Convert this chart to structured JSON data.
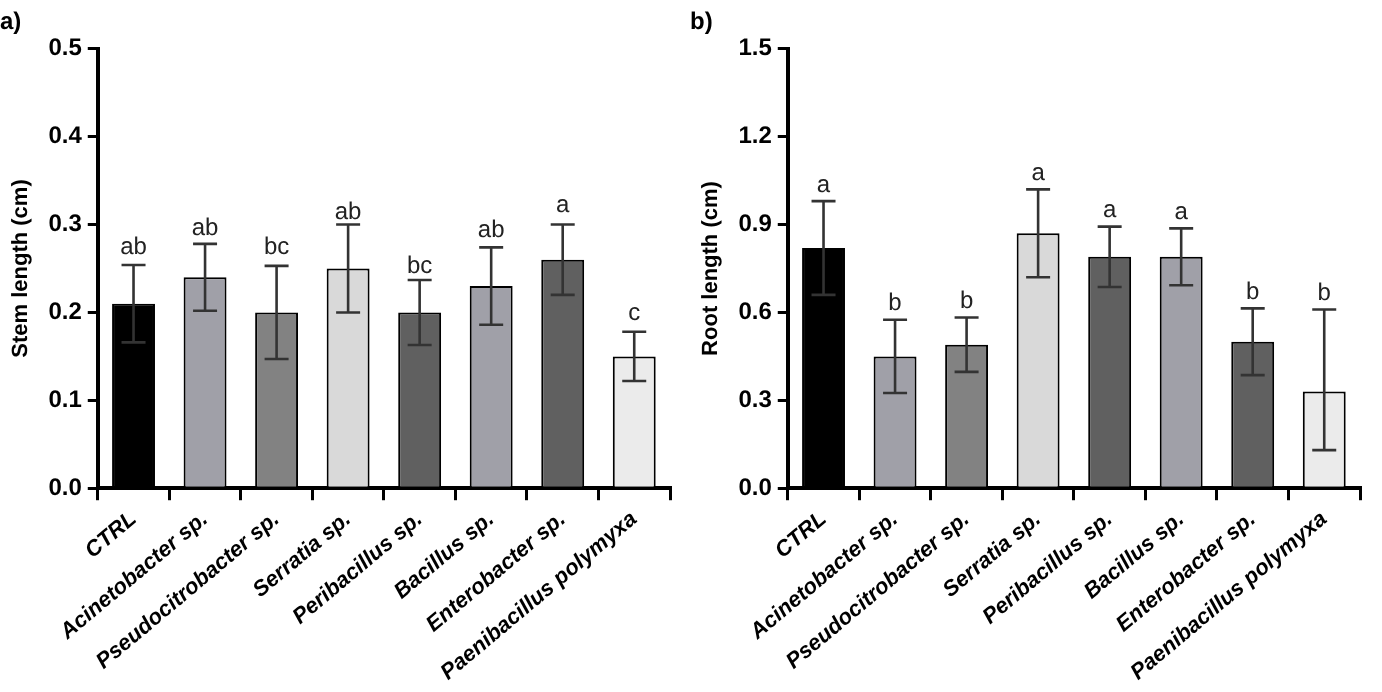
{
  "chart_data": [
    {
      "type": "bar",
      "title": "a)",
      "ylabel": "Stem length (cm)",
      "categories": [
        "CTRL",
        "Acinetobacter sp.",
        "Pseudocitrobacter sp.",
        "Serratia sp.",
        "Peribacillus sp.",
        "Bacillus sp.",
        "Enterobacter sp.",
        "Paenibacillus polymyxa"
      ],
      "values": [
        0.21,
        0.24,
        0.2,
        0.25,
        0.2,
        0.23,
        0.26,
        0.15
      ],
      "errors": [
        0.044,
        0.038,
        0.053,
        0.05,
        0.037,
        0.044,
        0.04,
        0.028
      ],
      "colors": [
        "#000000",
        "#a0a0a8",
        "#828282",
        "#d9d9d9",
        "#606060",
        "#a0a0a8",
        "#606060",
        "#ebebeb"
      ],
      "ylim": [
        0,
        0.5
      ],
      "yticks": [
        {
          "value": 0,
          "label": "0.0"
        },
        0.1,
        0.2,
        0.3,
        0.4,
        0.5
      ],
      "grid": false,
      "annotations": [
        {
          "text": "ab",
          "x": "CTRL",
          "y": 0.256
        },
        {
          "text": "ab",
          "x": "Acinetobacter sp.",
          "y": 0.277
        },
        {
          "text": "bc",
          "x": "Pseudocitrobacter sp.",
          "y": 0.256
        },
        {
          "text": "ab",
          "x": "Serratia sp.",
          "y": 0.296
        },
        {
          "text": "bc",
          "x": "Peribacillus sp.",
          "y": 0.234
        },
        {
          "text": "ab",
          "x": "Bacillus sp.",
          "y": 0.275
        },
        {
          "text": "a",
          "x": "Enterobacter sp.",
          "y": 0.304
        },
        {
          "text": "c",
          "x": "Paenibacillus polymyxa",
          "y": 0.181
        }
      ]
    },
    {
      "type": "bar",
      "title": "b)",
      "ylabel": "Root length (cm)",
      "categories": [
        "CTRL",
        "Acinetobacter sp.",
        "Pseudocitrobacter sp.",
        "Serratia sp.",
        "Peribacillus sp.",
        "Bacillus sp.",
        "Enterobacter sp.",
        "Paenibacillus polymyxa"
      ],
      "values": [
        0.82,
        0.45,
        0.49,
        0.87,
        0.79,
        0.79,
        0.5,
        0.33
      ],
      "errors": [
        0.16,
        0.125,
        0.093,
        0.15,
        0.103,
        0.097,
        0.114,
        [
          0.13,
          0.61
        ]
      ],
      "colors": [
        "#000000",
        "#a0a0a8",
        "#828282",
        "#d9d9d9",
        "#606060",
        "#a0a0a8",
        "#606060",
        "#ebebeb"
      ],
      "ylim": [
        0,
        1.5
      ],
      "yticks": [
        {
          "value": 0,
          "label": "0.0"
        },
        0.3,
        0.6,
        0.9,
        1.2,
        1.5
      ],
      "grid": false,
      "annotations": [
        {
          "text": "a",
          "x": "CTRL",
          "y": 0.98
        },
        {
          "text": "b",
          "x": "Acinetobacter sp.",
          "y": 0.575
        },
        {
          "text": "b",
          "x": "Pseudocitrobacter sp.",
          "y": 0.583
        },
        {
          "text": "a",
          "x": "Serratia sp.",
          "y": 1.02
        },
        {
          "text": "a",
          "x": "Peribacillus sp.",
          "y": 0.893
        },
        {
          "text": "a",
          "x": "Bacillus sp.",
          "y": 0.887
        },
        {
          "text": "b",
          "x": "Enterobacter sp.",
          "y": 0.614
        },
        {
          "text": "b",
          "x": "Paenibacillus polymyxa",
          "y": 0.61
        }
      ]
    }
  ]
}
